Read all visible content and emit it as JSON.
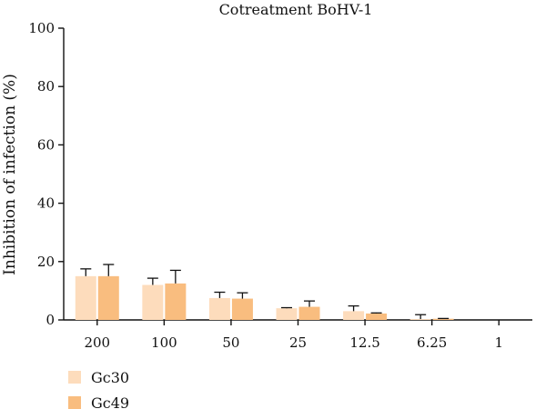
{
  "chart_data": {
    "type": "bar",
    "title": "Cotreatment BoHV-1",
    "xlabel": "",
    "ylabel": "Inhibition of infection (%)",
    "ylim": [
      0,
      100
    ],
    "yticks": [
      0,
      20,
      40,
      60,
      80,
      100
    ],
    "categories": [
      "200",
      "100",
      "50",
      "25",
      "12.5",
      "6.25",
      "1"
    ],
    "series": [
      {
        "name": "Gc30",
        "color": "#fddcbc",
        "values": [
          15,
          12,
          7.5,
          4,
          3,
          0.3,
          0
        ],
        "errors": [
          2.5,
          2.3,
          2.0,
          0.2,
          1.8,
          1.5,
          0
        ]
      },
      {
        "name": "Gc49",
        "color": "#f9bd7f",
        "values": [
          15,
          12.5,
          7.3,
          4.5,
          2.2,
          0.4,
          0
        ],
        "errors": [
          4.0,
          4.5,
          2.0,
          2.0,
          0.2,
          0.1,
          0
        ]
      }
    ],
    "legend": "bottom-left",
    "grid": false
  }
}
